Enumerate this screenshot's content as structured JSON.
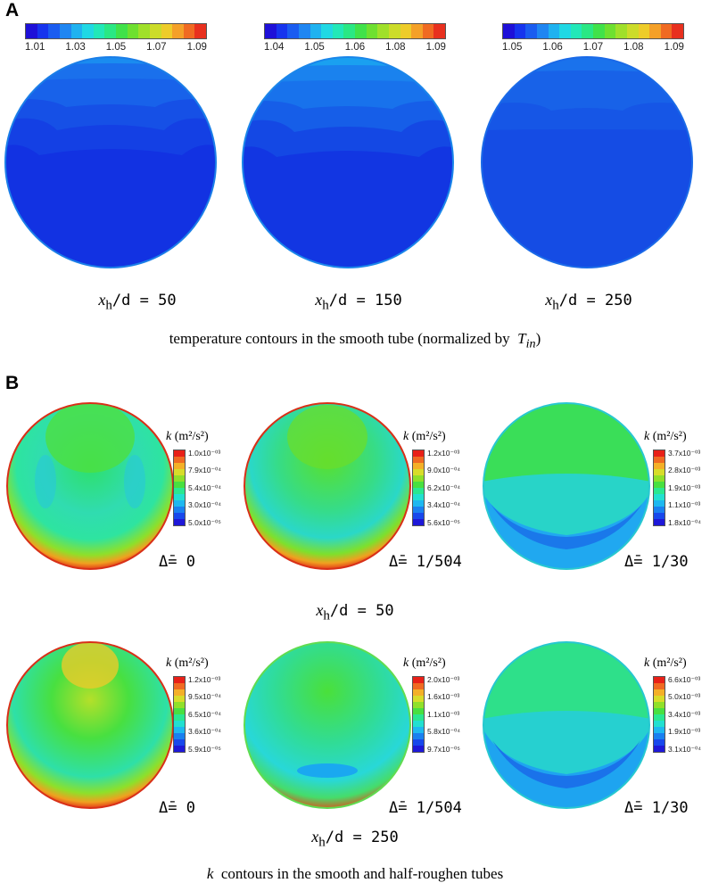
{
  "panel_a": {
    "label": "A",
    "colorbars": [
      {
        "ticks": [
          "1.01",
          "1.03",
          "1.05",
          "1.07",
          "1.09"
        ]
      },
      {
        "ticks": [
          "1.04",
          "1.05",
          "1.06",
          "1.08",
          "1.09"
        ]
      },
      {
        "ticks": [
          "1.05",
          "1.06",
          "1.07",
          "1.08",
          "1.09"
        ]
      }
    ],
    "positions": [
      {
        "var": "x",
        "sub": "h",
        "rest": "/d = 50"
      },
      {
        "var": "x",
        "sub": "h",
        "rest": "/d = 150"
      },
      {
        "var": "x",
        "sub": "h",
        "rest": "/d = 250"
      }
    ],
    "caption": "temperature contours in the smooth tube (normalized by",
    "caption_symbol": "T",
    "caption_sub": "in",
    "caption_end": ")"
  },
  "panel_b": {
    "label": "B",
    "k_title_var": "k",
    "k_title_unit": "(m²/s²)",
    "row1": {
      "plots": [
        {
          "ticks": [
            "1.0x10⁻⁰³",
            "7.9x10⁻⁰⁴",
            "5.4x10⁻⁰⁴",
            "3.0x10⁻⁰⁴",
            "5.0x10⁻⁰⁵"
          ],
          "delta": "Δ̄= 0"
        },
        {
          "ticks": [
            "1.2x10⁻⁰³",
            "9.0x10⁻⁰⁴",
            "6.2x10⁻⁰⁴",
            "3.4x10⁻⁰⁴",
            "5.6x10⁻⁰⁵"
          ],
          "delta": "Δ̄= 1/504"
        },
        {
          "ticks": [
            "3.7x10⁻⁰³",
            "2.8x10⁻⁰³",
            "1.9x10⁻⁰³",
            "1.1x10⁻⁰³",
            "1.8x10⁻⁰⁴"
          ],
          "delta": "Δ̄= 1/30"
        }
      ],
      "position": {
        "var": "x",
        "sub": "h",
        "rest": "/d = 50"
      }
    },
    "row2": {
      "plots": [
        {
          "ticks": [
            "1.2x10⁻⁰³",
            "9.5x10⁻⁰⁴",
            "6.5x10⁻⁰⁴",
            "3.6x10⁻⁰⁴",
            "5.9x10⁻⁰⁵"
          ],
          "delta": "Δ̄= 0"
        },
        {
          "ticks": [
            "2.0x10⁻⁰³",
            "1.6x10⁻⁰³",
            "1.1x10⁻⁰³",
            "5.8x10⁻⁰⁴",
            "9.7x10⁻⁰⁵"
          ],
          "delta": "Δ̄= 1/504"
        },
        {
          "ticks": [
            "6.6x10⁻⁰³",
            "5.0x10⁻⁰³",
            "3.4x10⁻⁰³",
            "1.9x10⁻⁰³",
            "3.1x10⁻⁰⁴"
          ],
          "delta": "Δ̄= 1/30"
        }
      ],
      "position": {
        "var": "x",
        "sub": "h",
        "rest": "/d = 250"
      }
    },
    "caption_var": "k",
    "caption": "contours in the smooth and half-roughen tubes"
  }
}
